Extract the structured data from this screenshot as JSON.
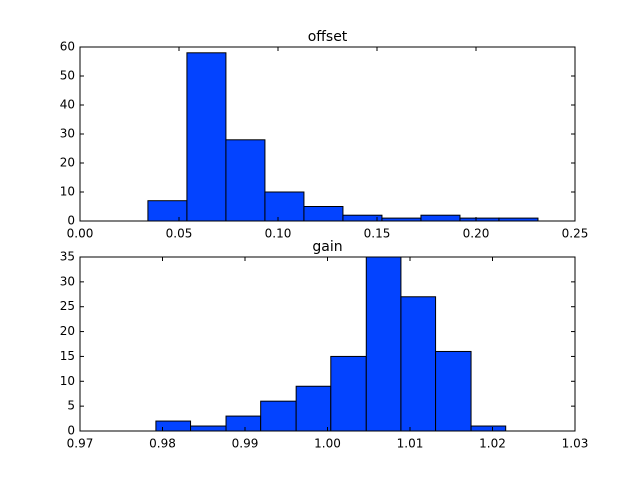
{
  "chart_data": [
    {
      "type": "histogram",
      "title": "offset",
      "bins": [
        0.0343,
        0.054,
        0.0737,
        0.0934,
        0.1131,
        0.1328,
        0.1525,
        0.1722,
        0.1919,
        0.2116,
        0.2313
      ],
      "values": [
        7,
        58,
        28,
        10,
        5,
        2,
        1,
        2,
        1,
        1
      ],
      "color": "#0343ff",
      "xlim": [
        0,
        0.25
      ],
      "xticks": [
        {
          "value": 0,
          "label": "0.00"
        },
        0.05,
        {
          "value": 0.1,
          "label": "0.10"
        },
        0.15,
        {
          "value": 0.2,
          "label": "0.20"
        },
        0.25
      ],
      "ylim": [
        0,
        60
      ],
      "yticks": [
        0,
        10,
        20,
        30,
        40,
        50,
        60
      ]
    },
    {
      "type": "histogram",
      "title": "gain",
      "bins": [
        0.9792,
        0.9834,
        0.9877,
        0.9919,
        0.9962,
        1.0004,
        1.0047,
        1.0089,
        1.0131,
        1.0174,
        1.0216
      ],
      "values": [
        2,
        1,
        3,
        6,
        9,
        15,
        35,
        27,
        16,
        1
      ],
      "color": "#0343ff",
      "xlim": [
        0.97,
        1.03
      ],
      "xticks": [
        0.97,
        0.98,
        0.99,
        {
          "value": 1,
          "label": "1.00"
        },
        1.01,
        1.02,
        1.03
      ],
      "ylim": [
        0,
        35
      ],
      "yticks": [
        0,
        5,
        10,
        15,
        20,
        25,
        30,
        35
      ]
    }
  ]
}
